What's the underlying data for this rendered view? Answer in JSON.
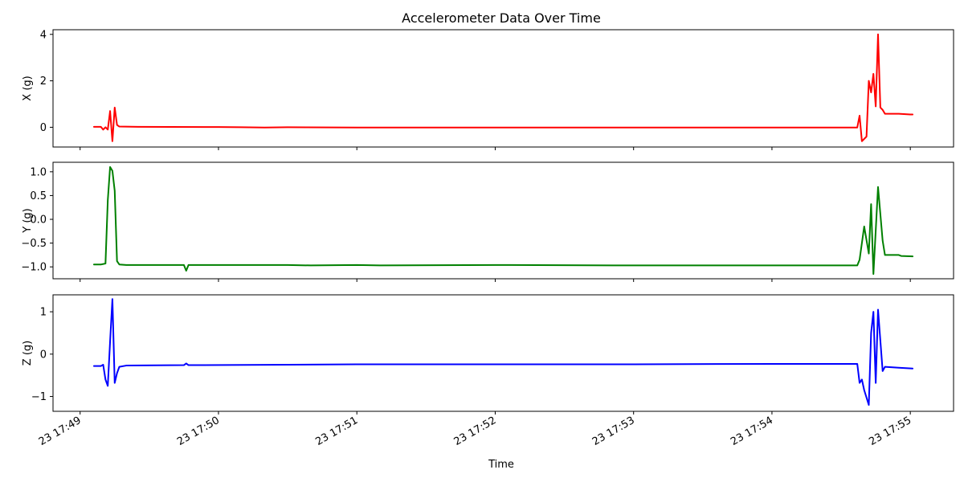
{
  "chart_data": {
    "type": "line",
    "title": "Accelerometer Data Over Time",
    "xlabel": "Time",
    "x_time_range": [
      "17:49:06",
      "17:55:01"
    ],
    "x_ticks": [
      {
        "time": "17:49:00",
        "label": "23 17:49"
      },
      {
        "time": "17:50:00",
        "label": "23 17:50"
      },
      {
        "time": "17:51:00",
        "label": "23 17:51"
      },
      {
        "time": "17:52:00",
        "label": "23 17:52"
      },
      {
        "time": "17:53:00",
        "label": "23 17:53"
      },
      {
        "time": "17:54:00",
        "label": "23 17:54"
      },
      {
        "time": "17:55:00",
        "label": "23 17:55"
      }
    ],
    "panels": [
      {
        "name": "X",
        "ylabel": "X (g)",
        "color": "#ff0000",
        "ylim": [
          -0.85,
          4.2
        ],
        "yticks": [
          0,
          2,
          4
        ],
        "ytick_labels": [
          "0",
          "2",
          "4"
        ],
        "points": [
          [
            "17:49:06",
            0.02
          ],
          [
            "17:49:09",
            0.02
          ],
          [
            "17:49:10",
            -0.1
          ],
          [
            "17:49:11",
            0.0
          ],
          [
            "17:49:12",
            -0.1
          ],
          [
            "17:49:13",
            0.7
          ],
          [
            "17:49:14",
            -0.6
          ],
          [
            "17:49:15",
            0.85
          ],
          [
            "17:49:16",
            0.1
          ],
          [
            "17:49:17",
            0.03
          ],
          [
            "17:49:25",
            0.02
          ],
          [
            "17:50:00",
            0.01
          ],
          [
            "17:50:10",
            0.0
          ],
          [
            "17:50:20",
            -0.01
          ],
          [
            "17:50:30",
            0.0
          ],
          [
            "17:51:00",
            -0.01
          ],
          [
            "17:52:00",
            -0.01
          ],
          [
            "17:53:00",
            -0.01
          ],
          [
            "17:53:45",
            -0.01
          ],
          [
            "17:54:10",
            -0.01
          ],
          [
            "17:54:37",
            -0.01
          ],
          [
            "17:54:38",
            0.5
          ],
          [
            "17:54:39",
            -0.6
          ],
          [
            "17:54:41",
            -0.4
          ],
          [
            "17:54:42",
            2.0
          ],
          [
            "17:54:43",
            1.5
          ],
          [
            "17:54:44",
            2.3
          ],
          [
            "17:54:45",
            0.9
          ],
          [
            "17:54:46",
            4.0
          ],
          [
            "17:54:47",
            0.85
          ],
          [
            "17:54:48",
            0.75
          ],
          [
            "17:54:49",
            0.58
          ],
          [
            "17:54:55",
            0.58
          ],
          [
            "17:55:00",
            0.55
          ],
          [
            "17:55:01",
            0.55
          ]
        ]
      },
      {
        "name": "Y",
        "ylabel": "Y (g)",
        "color": "#008000",
        "ylim": [
          -1.25,
          1.2
        ],
        "yticks": [
          -1.0,
          -0.5,
          0.0,
          0.5,
          1.0
        ],
        "ytick_labels": [
          "−1.0",
          "−0.5",
          "0.0",
          "0.5",
          "1.0"
        ],
        "points": [
          [
            "17:49:06",
            -0.95
          ],
          [
            "17:49:09",
            -0.95
          ],
          [
            "17:49:11",
            -0.93
          ],
          [
            "17:49:12",
            0.4
          ],
          [
            "17:49:13",
            1.1
          ],
          [
            "17:49:14",
            1.02
          ],
          [
            "17:49:15",
            0.6
          ],
          [
            "17:49:16",
            -0.88
          ],
          [
            "17:49:17",
            -0.95
          ],
          [
            "17:49:20",
            -0.96
          ],
          [
            "17:49:45",
            -0.96
          ],
          [
            "17:49:46",
            -1.08
          ],
          [
            "17:49:47",
            -0.96
          ],
          [
            "17:50:30",
            -0.96
          ],
          [
            "17:50:40",
            -0.97
          ],
          [
            "17:51:00",
            -0.96
          ],
          [
            "17:51:10",
            -0.97
          ],
          [
            "17:52:00",
            -0.96
          ],
          [
            "17:53:00",
            -0.97
          ],
          [
            "17:54:00",
            -0.97
          ],
          [
            "17:54:37",
            -0.97
          ],
          [
            "17:54:38",
            -0.85
          ],
          [
            "17:54:40",
            -0.15
          ],
          [
            "17:54:42",
            -0.72
          ],
          [
            "17:54:43",
            0.32
          ],
          [
            "17:54:44",
            -1.15
          ],
          [
            "17:54:46",
            0.68
          ],
          [
            "17:54:48",
            -0.45
          ],
          [
            "17:54:49",
            -0.75
          ],
          [
            "17:54:55",
            -0.75
          ],
          [
            "17:54:56",
            -0.77
          ],
          [
            "17:55:01",
            -0.78
          ]
        ]
      },
      {
        "name": "Z",
        "ylabel": "Z (g)",
        "color": "#0000ff",
        "ylim": [
          -1.35,
          1.4
        ],
        "yticks": [
          -1,
          0,
          1
        ],
        "ytick_labels": [
          "−1",
          "0",
          "1"
        ],
        "points": [
          [
            "17:49:06",
            -0.28
          ],
          [
            "17:49:09",
            -0.28
          ],
          [
            "17:49:10",
            -0.25
          ],
          [
            "17:49:11",
            -0.6
          ],
          [
            "17:49:12",
            -0.75
          ],
          [
            "17:49:13",
            0.3
          ],
          [
            "17:49:14",
            1.3
          ],
          [
            "17:49:15",
            -0.68
          ],
          [
            "17:49:16",
            -0.45
          ],
          [
            "17:49:17",
            -0.3
          ],
          [
            "17:49:20",
            -0.27
          ],
          [
            "17:49:45",
            -0.26
          ],
          [
            "17:49:46",
            -0.22
          ],
          [
            "17:49:47",
            -0.26
          ],
          [
            "17:50:30",
            -0.25
          ],
          [
            "17:51:00",
            -0.24
          ],
          [
            "17:52:00",
            -0.24
          ],
          [
            "17:53:00",
            -0.24
          ],
          [
            "17:54:00",
            -0.23
          ],
          [
            "17:54:37",
            -0.23
          ],
          [
            "17:54:38",
            -0.68
          ],
          [
            "17:54:39",
            -0.6
          ],
          [
            "17:54:40",
            -0.85
          ],
          [
            "17:54:42",
            -1.2
          ],
          [
            "17:54:43",
            0.5
          ],
          [
            "17:54:44",
            1.0
          ],
          [
            "17:54:45",
            -0.68
          ],
          [
            "17:54:46",
            1.05
          ],
          [
            "17:54:48",
            -0.4
          ],
          [
            "17:54:49",
            -0.3
          ],
          [
            "17:54:55",
            -0.32
          ],
          [
            "17:55:01",
            -0.34
          ]
        ]
      }
    ]
  }
}
